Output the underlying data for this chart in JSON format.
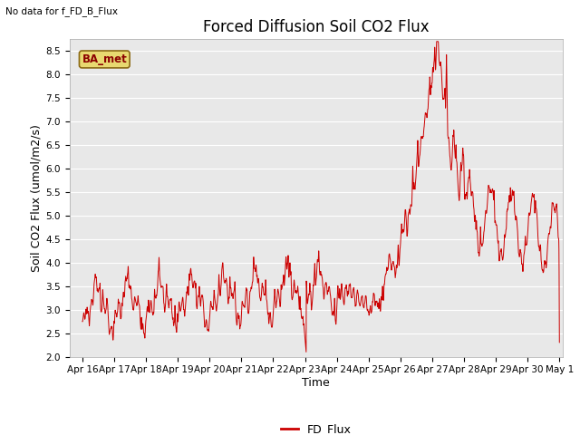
{
  "title": "Forced Diffusion Soil CO2 Flux",
  "xlabel": "Time",
  "ylabel_display": "Soil CO2 Flux (umol/m2/s)",
  "no_data_text": "No data for f_FD_B_Flux",
  "legend_box_label": "BA_met",
  "legend_line_label": "FD_Flux",
  "ylim": [
    2.0,
    8.75
  ],
  "yticks": [
    2.0,
    2.5,
    3.0,
    3.5,
    4.0,
    4.5,
    5.0,
    5.5,
    6.0,
    6.5,
    7.0,
    7.5,
    8.0,
    8.5
  ],
  "line_color": "#cc0000",
  "background_color": "#e8e8e8",
  "figure_background": "#ffffff",
  "title_fontsize": 12,
  "axis_fontsize": 9,
  "tick_fontsize": 7.5,
  "start_day": 15.6,
  "end_day": 31.1,
  "x_tick_positions": [
    16,
    17,
    18,
    19,
    20,
    21,
    22,
    23,
    24,
    25,
    26,
    27,
    28,
    29,
    30,
    31
  ],
  "x_tick_labels": [
    "Apr 16",
    "Apr 17",
    "Apr 18",
    "Apr 19",
    "Apr 20",
    "Apr 21",
    "Apr 22",
    "Apr 23",
    "Apr 24",
    "Apr 25",
    "Apr 26",
    "Apr 27",
    "Apr 28",
    "Apr 29",
    "Apr 30",
    "May 1"
  ]
}
